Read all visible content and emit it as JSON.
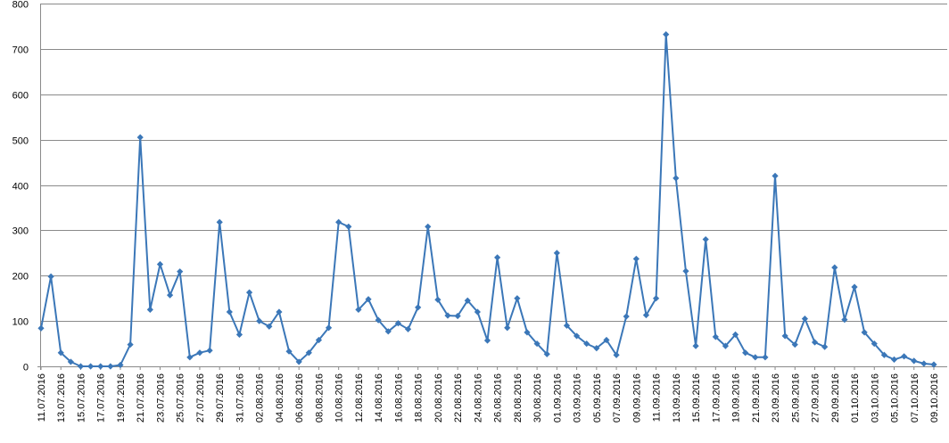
{
  "chart_data": {
    "type": "line",
    "title": "",
    "xlabel": "",
    "ylabel": "",
    "ylim": [
      0,
      800
    ],
    "yticks": [
      0,
      100,
      200,
      300,
      400,
      500,
      600,
      700,
      800
    ],
    "grid": "horizontal",
    "legend": "none",
    "colors": {
      "line": "#3b77b8",
      "grid": "#8a8a8a",
      "axis": "#8a8a8a"
    },
    "x": [
      "11.07.2016",
      "12.07.2016",
      "13.07.2016",
      "14.07.2016",
      "15.07.2016",
      "16.07.2016",
      "17.07.2016",
      "18.07.2016",
      "19.07.2016",
      "20.07.2016",
      "21.07.2016",
      "22.07.2016",
      "23.07.2016",
      "24.07.2016",
      "25.07.2016",
      "26.07.2016",
      "27.07.2016",
      "28.07.2016",
      "29.07.2016",
      "30.07.2016",
      "31.07.2016",
      "01.08.2016",
      "02.08.2016",
      "03.08.2016",
      "04.08.2016",
      "05.08.2016",
      "06.08.2016",
      "07.08.2016",
      "08.08.2016",
      "09.08.2016",
      "10.08.2016",
      "11.08.2016",
      "12.08.2016",
      "13.08.2016",
      "14.08.2016",
      "15.08.2016",
      "16.08.2016",
      "17.08.2016",
      "18.08.2016",
      "19.08.2016",
      "20.08.2016",
      "21.08.2016",
      "22.08.2016",
      "23.08.2016",
      "24.08.2016",
      "25.08.2016",
      "26.08.2016",
      "27.08.2016",
      "28.08.2016",
      "29.08.2016",
      "30.08.2016",
      "31.08.2016",
      "01.09.2016",
      "02.09.2016",
      "03.09.2016",
      "04.09.2016",
      "05.09.2016",
      "06.09.2016",
      "07.09.2016",
      "08.09.2016",
      "09.09.2016",
      "10.09.2016",
      "11.09.2016",
      "12.09.2016",
      "13.09.2016",
      "14.09.2016",
      "15.09.2016",
      "16.09.2016",
      "17.09.2016",
      "18.09.2016",
      "19.09.2016",
      "20.09.2016",
      "21.09.2016",
      "22.09.2016",
      "23.09.2016",
      "24.09.2016",
      "25.09.2016",
      "26.09.2016",
      "27.09.2016",
      "28.09.2016",
      "29.09.2016",
      "30.09.2016",
      "01.10.2016",
      "02.10.2016",
      "03.10.2016",
      "04.10.2016",
      "05.10.2016",
      "06.10.2016",
      "07.10.2016",
      "08.10.2016",
      "09.10.2016"
    ],
    "series": [
      {
        "values": [
          84,
          198,
          30,
          10,
          0,
          0,
          0,
          0,
          3,
          48,
          505,
          125,
          225,
          157,
          209,
          20,
          30,
          35,
          318,
          120,
          70,
          163,
          100,
          88,
          120,
          33,
          10,
          30,
          58,
          85,
          318,
          308,
          125,
          148,
          102,
          77,
          95,
          82,
          130,
          308,
          147,
          112,
          111,
          145,
          120,
          57,
          240,
          85,
          150,
          75,
          50,
          27,
          250,
          90,
          67,
          50,
          40,
          58,
          25,
          110,
          237,
          113,
          150,
          732,
          415,
          210,
          45,
          280,
          65,
          45,
          70,
          30,
          20,
          20,
          420,
          67,
          48,
          105,
          53,
          43,
          218,
          103,
          175,
          75,
          50,
          25,
          15,
          22,
          12,
          6,
          4
        ]
      }
    ],
    "xtick_labels": [
      "11.07.2016",
      "13.07.2016",
      "15.07.2016",
      "17.07.2016",
      "19.07.2016",
      "21.07.2016",
      "23.07.2016",
      "25.07.2016",
      "27.07.2016",
      "29.07.2016",
      "31.07.2016",
      "02.08.2016",
      "04.08.2016",
      "06.08.2016",
      "08.08.2016",
      "10.08.2016",
      "12.08.2016",
      "14.08.2016",
      "16.08.2016",
      "18.08.2016",
      "20.08.2016",
      "22.08.2016",
      "24.08.2016",
      "26.08.2016",
      "28.08.2016",
      "30.08.2016",
      "01.09.2016",
      "03.09.2016",
      "05.09.2016",
      "07.09.2016",
      "09.09.2016",
      "11.09.2016",
      "13.09.2016",
      "15.09.2016",
      "17.09.2016",
      "19.09.2016",
      "21.09.2016",
      "23.09.2016",
      "25.09.2016",
      "27.09.2016",
      "29.09.2016",
      "01.10.2016",
      "03.10.2016",
      "05.10.2016",
      "07.10.2016",
      "09.10.2016"
    ]
  }
}
